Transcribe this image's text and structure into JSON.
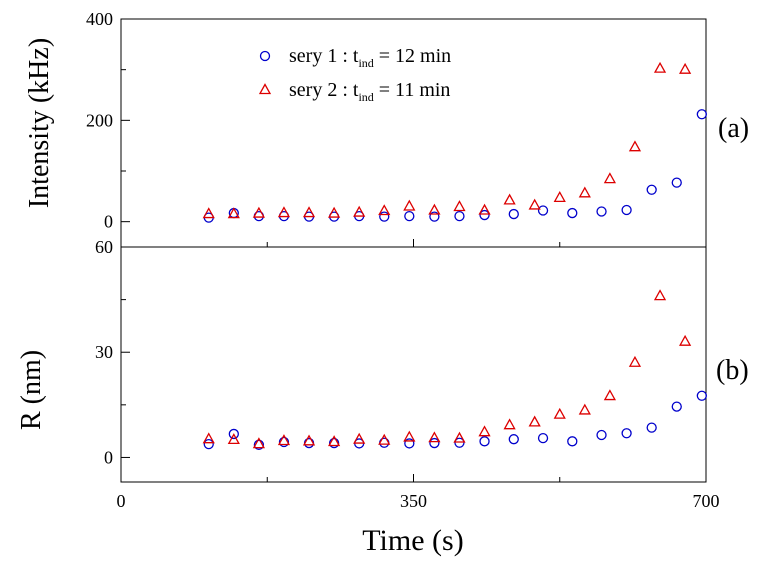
{
  "chart_data": [
    {
      "panel_label": "(a)",
      "type": "scatter",
      "title": "",
      "xlabel": "Time (s)",
      "ylabel": "Intensity (kHz)",
      "xlim": [
        0,
        700
      ],
      "ylim": [
        -50,
        400
      ],
      "x_ticks": [
        0,
        350,
        700
      ],
      "y_ticks": [
        0,
        200,
        400
      ],
      "grid": false,
      "legend_position": "top-left",
      "legend": [
        {
          "prefix": "sery 1 : t",
          "sub": "ind",
          "suffix": " = 12 min"
        },
        {
          "prefix": "sery 2 : t",
          "sub": "ind",
          "suffix": " = 11 min"
        }
      ],
      "series": [
        {
          "marker": "circle",
          "color": "#0000cc",
          "x": [
            105,
            135,
            165,
            195,
            225,
            255,
            285,
            315,
            345,
            375,
            405,
            435,
            470,
            505,
            540,
            575,
            605,
            635,
            665,
            695
          ],
          "y": [
            8,
            17,
            11,
            11,
            10,
            10,
            11,
            10,
            11,
            10,
            11,
            13,
            15,
            22,
            17,
            20,
            23,
            63,
            77,
            212
          ]
        },
        {
          "marker": "triangle",
          "color": "#dd0000",
          "x": [
            105,
            135,
            165,
            195,
            225,
            255,
            285,
            315,
            345,
            375,
            405,
            435,
            465,
            495,
            525,
            555,
            585,
            615,
            645,
            675
          ],
          "y": [
            15,
            15,
            16,
            17,
            17,
            16,
            18,
            21,
            30,
            22,
            29,
            22,
            42,
            32,
            47,
            56,
            84,
            147,
            302,
            300
          ]
        }
      ]
    },
    {
      "panel_label": "(b)",
      "type": "scatter",
      "title": "",
      "xlabel": "Time (s)",
      "ylabel": "R (nm)",
      "xlim": [
        0,
        700
      ],
      "ylim": [
        -7,
        60
      ],
      "x_ticks": [
        0,
        350,
        700
      ],
      "y_ticks": [
        0,
        30,
        60
      ],
      "grid": false,
      "series": [
        {
          "marker": "circle",
          "color": "#0000cc",
          "x": [
            105,
            135,
            165,
            195,
            225,
            255,
            285,
            315,
            345,
            375,
            405,
            435,
            470,
            505,
            540,
            575,
            605,
            635,
            665,
            695
          ],
          "y": [
            3.8,
            6.7,
            3.6,
            4.4,
            4.1,
            4.1,
            4.0,
            4.2,
            4.0,
            4.1,
            4.2,
            4.6,
            5.2,
            5.5,
            4.6,
            6.4,
            6.9,
            8.5,
            14.5,
            17.6
          ]
        },
        {
          "marker": "triangle",
          "color": "#dd0000",
          "x": [
            105,
            135,
            165,
            195,
            225,
            255,
            285,
            315,
            345,
            375,
            405,
            435,
            465,
            495,
            525,
            555,
            585,
            615,
            645,
            675
          ],
          "y": [
            5.2,
            5.0,
            3.8,
            4.7,
            4.6,
            4.4,
            5.1,
            4.8,
            5.7,
            5.5,
            5.4,
            7.2,
            9.2,
            10.0,
            12.2,
            13.4,
            17.5,
            27.0,
            46.0,
            33.0
          ]
        }
      ]
    }
  ]
}
